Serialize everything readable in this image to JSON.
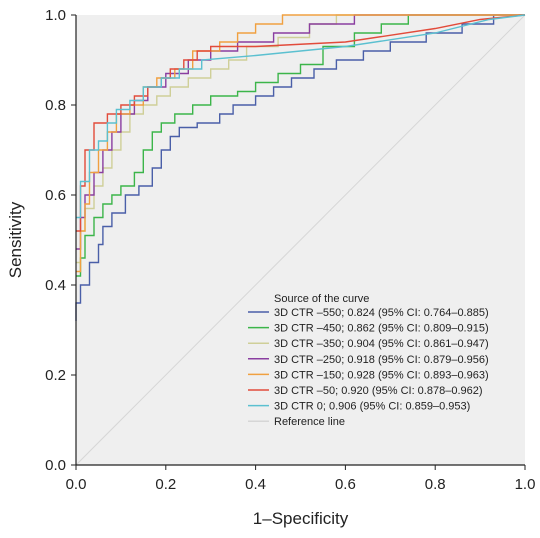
{
  "chart_data": {
    "type": "line",
    "xlabel": "1–Specificity",
    "ylabel": "Sensitivity",
    "xlim": [
      0.0,
      1.0
    ],
    "ylim": [
      0.0,
      1.0
    ],
    "x_ticks": [
      "0.0",
      "0.2",
      "0.4",
      "0.6",
      "0.8",
      "1.0"
    ],
    "y_ticks": [
      "0.0",
      "0.2",
      "0.4",
      "0.6",
      "0.8",
      "1.0"
    ],
    "grid": false,
    "plot_background": "#efefef",
    "legend": {
      "position": "bottom-right",
      "title": "Source of the curve"
    },
    "series": [
      {
        "name": "3D CTR –550; 0.824 (95% CI: 0.764–0.885)",
        "color": "#4a5fa8",
        "points": [
          [
            0,
            0.32
          ],
          [
            0,
            0.36
          ],
          [
            0.01,
            0.36
          ],
          [
            0.01,
            0.4
          ],
          [
            0.03,
            0.4
          ],
          [
            0.03,
            0.45
          ],
          [
            0.05,
            0.45
          ],
          [
            0.05,
            0.49
          ],
          [
            0.06,
            0.49
          ],
          [
            0.06,
            0.53
          ],
          [
            0.08,
            0.53
          ],
          [
            0.08,
            0.56
          ],
          [
            0.11,
            0.56
          ],
          [
            0.11,
            0.6
          ],
          [
            0.14,
            0.6
          ],
          [
            0.14,
            0.62
          ],
          [
            0.17,
            0.62
          ],
          [
            0.17,
            0.66
          ],
          [
            0.19,
            0.66
          ],
          [
            0.19,
            0.7
          ],
          [
            0.21,
            0.7
          ],
          [
            0.21,
            0.73
          ],
          [
            0.23,
            0.73
          ],
          [
            0.23,
            0.75
          ],
          [
            0.27,
            0.75
          ],
          [
            0.27,
            0.76
          ],
          [
            0.32,
            0.76
          ],
          [
            0.32,
            0.78
          ],
          [
            0.35,
            0.78
          ],
          [
            0.35,
            0.8
          ],
          [
            0.4,
            0.8
          ],
          [
            0.4,
            0.82
          ],
          [
            0.44,
            0.82
          ],
          [
            0.44,
            0.84
          ],
          [
            0.48,
            0.84
          ],
          [
            0.48,
            0.86
          ],
          [
            0.53,
            0.86
          ],
          [
            0.53,
            0.88
          ],
          [
            0.58,
            0.88
          ],
          [
            0.58,
            0.9
          ],
          [
            0.64,
            0.9
          ],
          [
            0.64,
            0.92
          ],
          [
            0.7,
            0.92
          ],
          [
            0.7,
            0.94
          ],
          [
            0.78,
            0.94
          ],
          [
            0.78,
            0.96
          ],
          [
            0.86,
            0.96
          ],
          [
            0.86,
            0.98
          ],
          [
            0.93,
            0.98
          ],
          [
            0.93,
            1.0
          ],
          [
            1.0,
            1.0
          ]
        ]
      },
      {
        "name": "3D CTR –450; 0.862 (95% CI: 0.809–0.915)",
        "color": "#3cb54a",
        "points": [
          [
            0,
            0.42
          ],
          [
            0.01,
            0.42
          ],
          [
            0.01,
            0.46
          ],
          [
            0.02,
            0.46
          ],
          [
            0.02,
            0.51
          ],
          [
            0.04,
            0.51
          ],
          [
            0.04,
            0.55
          ],
          [
            0.06,
            0.55
          ],
          [
            0.06,
            0.58
          ],
          [
            0.08,
            0.58
          ],
          [
            0.08,
            0.6
          ],
          [
            0.1,
            0.6
          ],
          [
            0.1,
            0.62
          ],
          [
            0.13,
            0.62
          ],
          [
            0.13,
            0.65
          ],
          [
            0.15,
            0.65
          ],
          [
            0.15,
            0.7
          ],
          [
            0.17,
            0.7
          ],
          [
            0.17,
            0.74
          ],
          [
            0.19,
            0.74
          ],
          [
            0.19,
            0.76
          ],
          [
            0.22,
            0.76
          ],
          [
            0.22,
            0.78
          ],
          [
            0.26,
            0.78
          ],
          [
            0.26,
            0.8
          ],
          [
            0.3,
            0.8
          ],
          [
            0.3,
            0.82
          ],
          [
            0.36,
            0.82
          ],
          [
            0.36,
            0.83
          ],
          [
            0.4,
            0.83
          ],
          [
            0.4,
            0.85
          ],
          [
            0.45,
            0.85
          ],
          [
            0.45,
            0.87
          ],
          [
            0.5,
            0.87
          ],
          [
            0.5,
            0.89
          ],
          [
            0.55,
            0.89
          ],
          [
            0.55,
            0.93
          ],
          [
            0.62,
            0.93
          ],
          [
            0.62,
            0.96
          ],
          [
            0.68,
            0.96
          ],
          [
            0.68,
            0.98
          ],
          [
            0.74,
            0.98
          ],
          [
            0.74,
            1.0
          ],
          [
            1.0,
            1.0
          ]
        ]
      },
      {
        "name": "3D CTR –350; 0.904 (95% CI: 0.861–0.947)",
        "color": "#cfcf98",
        "points": [
          [
            0,
            0.45
          ],
          [
            0.01,
            0.45
          ],
          [
            0.01,
            0.52
          ],
          [
            0.02,
            0.52
          ],
          [
            0.02,
            0.57
          ],
          [
            0.04,
            0.57
          ],
          [
            0.04,
            0.62
          ],
          [
            0.06,
            0.62
          ],
          [
            0.06,
            0.66
          ],
          [
            0.08,
            0.66
          ],
          [
            0.08,
            0.7
          ],
          [
            0.1,
            0.7
          ],
          [
            0.1,
            0.74
          ],
          [
            0.12,
            0.74
          ],
          [
            0.12,
            0.78
          ],
          [
            0.15,
            0.78
          ],
          [
            0.15,
            0.8
          ],
          [
            0.18,
            0.8
          ],
          [
            0.18,
            0.82
          ],
          [
            0.21,
            0.82
          ],
          [
            0.21,
            0.84
          ],
          [
            0.25,
            0.84
          ],
          [
            0.25,
            0.86
          ],
          [
            0.3,
            0.86
          ],
          [
            0.3,
            0.88
          ],
          [
            0.34,
            0.88
          ],
          [
            0.34,
            0.9
          ],
          [
            0.38,
            0.9
          ],
          [
            0.38,
            0.93
          ],
          [
            0.45,
            0.93
          ],
          [
            0.45,
            0.95
          ],
          [
            0.52,
            0.95
          ],
          [
            0.52,
            0.98
          ],
          [
            0.58,
            0.98
          ],
          [
            0.58,
            1.0
          ],
          [
            1.0,
            1.0
          ]
        ]
      },
      {
        "name": "3D CTR –250; 0.918 (95% CI: 0.879–0.956)",
        "color": "#8a3ea0",
        "points": [
          [
            0,
            0.48
          ],
          [
            0.01,
            0.48
          ],
          [
            0.01,
            0.55
          ],
          [
            0.02,
            0.55
          ],
          [
            0.02,
            0.6
          ],
          [
            0.04,
            0.6
          ],
          [
            0.04,
            0.65
          ],
          [
            0.06,
            0.65
          ],
          [
            0.06,
            0.7
          ],
          [
            0.08,
            0.7
          ],
          [
            0.08,
            0.74
          ],
          [
            0.1,
            0.74
          ],
          [
            0.1,
            0.78
          ],
          [
            0.13,
            0.78
          ],
          [
            0.13,
            0.81
          ],
          [
            0.16,
            0.81
          ],
          [
            0.16,
            0.84
          ],
          [
            0.2,
            0.84
          ],
          [
            0.2,
            0.87
          ],
          [
            0.25,
            0.87
          ],
          [
            0.25,
            0.9
          ],
          [
            0.3,
            0.9
          ],
          [
            0.3,
            0.92
          ],
          [
            0.36,
            0.92
          ],
          [
            0.36,
            0.94
          ],
          [
            0.44,
            0.94
          ],
          [
            0.44,
            0.96
          ],
          [
            0.52,
            0.96
          ],
          [
            0.52,
            0.98
          ],
          [
            0.62,
            0.98
          ],
          [
            0.62,
            1.0
          ],
          [
            1.0,
            1.0
          ]
        ]
      },
      {
        "name": "3D CTR –150; 0.928 (95% CI: 0.893–0.963)",
        "color": "#f0a040",
        "points": [
          [
            0,
            0.43
          ],
          [
            0.01,
            0.43
          ],
          [
            0.01,
            0.52
          ],
          [
            0.02,
            0.52
          ],
          [
            0.02,
            0.58
          ],
          [
            0.03,
            0.58
          ],
          [
            0.03,
            0.65
          ],
          [
            0.05,
            0.65
          ],
          [
            0.05,
            0.7
          ],
          [
            0.07,
            0.7
          ],
          [
            0.07,
            0.74
          ],
          [
            0.09,
            0.74
          ],
          [
            0.09,
            0.78
          ],
          [
            0.12,
            0.78
          ],
          [
            0.12,
            0.8
          ],
          [
            0.15,
            0.8
          ],
          [
            0.15,
            0.84
          ],
          [
            0.18,
            0.84
          ],
          [
            0.18,
            0.86
          ],
          [
            0.22,
            0.86
          ],
          [
            0.22,
            0.88
          ],
          [
            0.26,
            0.88
          ],
          [
            0.26,
            0.92
          ],
          [
            0.32,
            0.92
          ],
          [
            0.32,
            0.94
          ],
          [
            0.36,
            0.94
          ],
          [
            0.36,
            0.96
          ],
          [
            0.4,
            0.96
          ],
          [
            0.4,
            0.98
          ],
          [
            0.46,
            0.98
          ],
          [
            0.46,
            1.0
          ],
          [
            1.0,
            1.0
          ]
        ]
      },
      {
        "name": "3D CTR –50; 0.920 (95% CI: 0.878–0.962)",
        "color": "#e24b3b",
        "points": [
          [
            0,
            0.52
          ],
          [
            0.01,
            0.52
          ],
          [
            0.01,
            0.62
          ],
          [
            0.02,
            0.62
          ],
          [
            0.02,
            0.7
          ],
          [
            0.04,
            0.7
          ],
          [
            0.04,
            0.76
          ],
          [
            0.07,
            0.76
          ],
          [
            0.07,
            0.78
          ],
          [
            0.1,
            0.78
          ],
          [
            0.1,
            0.8
          ],
          [
            0.13,
            0.8
          ],
          [
            0.13,
            0.82
          ],
          [
            0.16,
            0.82
          ],
          [
            0.16,
            0.84
          ],
          [
            0.19,
            0.84
          ],
          [
            0.19,
            0.86
          ],
          [
            0.21,
            0.86
          ],
          [
            0.21,
            0.88
          ],
          [
            0.24,
            0.88
          ],
          [
            0.24,
            0.9
          ],
          [
            0.27,
            0.9
          ],
          [
            0.27,
            0.92
          ],
          [
            0.3,
            0.92
          ],
          [
            0.3,
            0.93
          ],
          [
            0.4,
            0.93
          ],
          [
            0.6,
            0.94
          ],
          [
            0.8,
            0.97
          ],
          [
            0.9,
            0.99
          ],
          [
            1.0,
            1.0
          ]
        ]
      },
      {
        "name": "3D CTR 0; 0.906 (95% CI: 0.859–0.953)",
        "color": "#5bc0d0",
        "points": [
          [
            0,
            0.55
          ],
          [
            0.01,
            0.55
          ],
          [
            0.01,
            0.63
          ],
          [
            0.03,
            0.63
          ],
          [
            0.03,
            0.7
          ],
          [
            0.05,
            0.7
          ],
          [
            0.05,
            0.72
          ],
          [
            0.07,
            0.72
          ],
          [
            0.07,
            0.76
          ],
          [
            0.09,
            0.76
          ],
          [
            0.09,
            0.79
          ],
          [
            0.12,
            0.79
          ],
          [
            0.12,
            0.81
          ],
          [
            0.15,
            0.81
          ],
          [
            0.15,
            0.84
          ],
          [
            0.19,
            0.84
          ],
          [
            0.19,
            0.86
          ],
          [
            0.23,
            0.86
          ],
          [
            0.23,
            0.88
          ],
          [
            0.28,
            0.88
          ],
          [
            0.28,
            0.9
          ],
          [
            0.4,
            0.91
          ],
          [
            0.6,
            0.93
          ],
          [
            0.8,
            0.96
          ],
          [
            0.92,
            0.99
          ],
          [
            1.0,
            1.0
          ]
        ]
      },
      {
        "name": "Reference line",
        "color": "#d6d6d6",
        "points": [
          [
            0,
            0
          ],
          [
            1,
            1
          ]
        ]
      }
    ]
  }
}
